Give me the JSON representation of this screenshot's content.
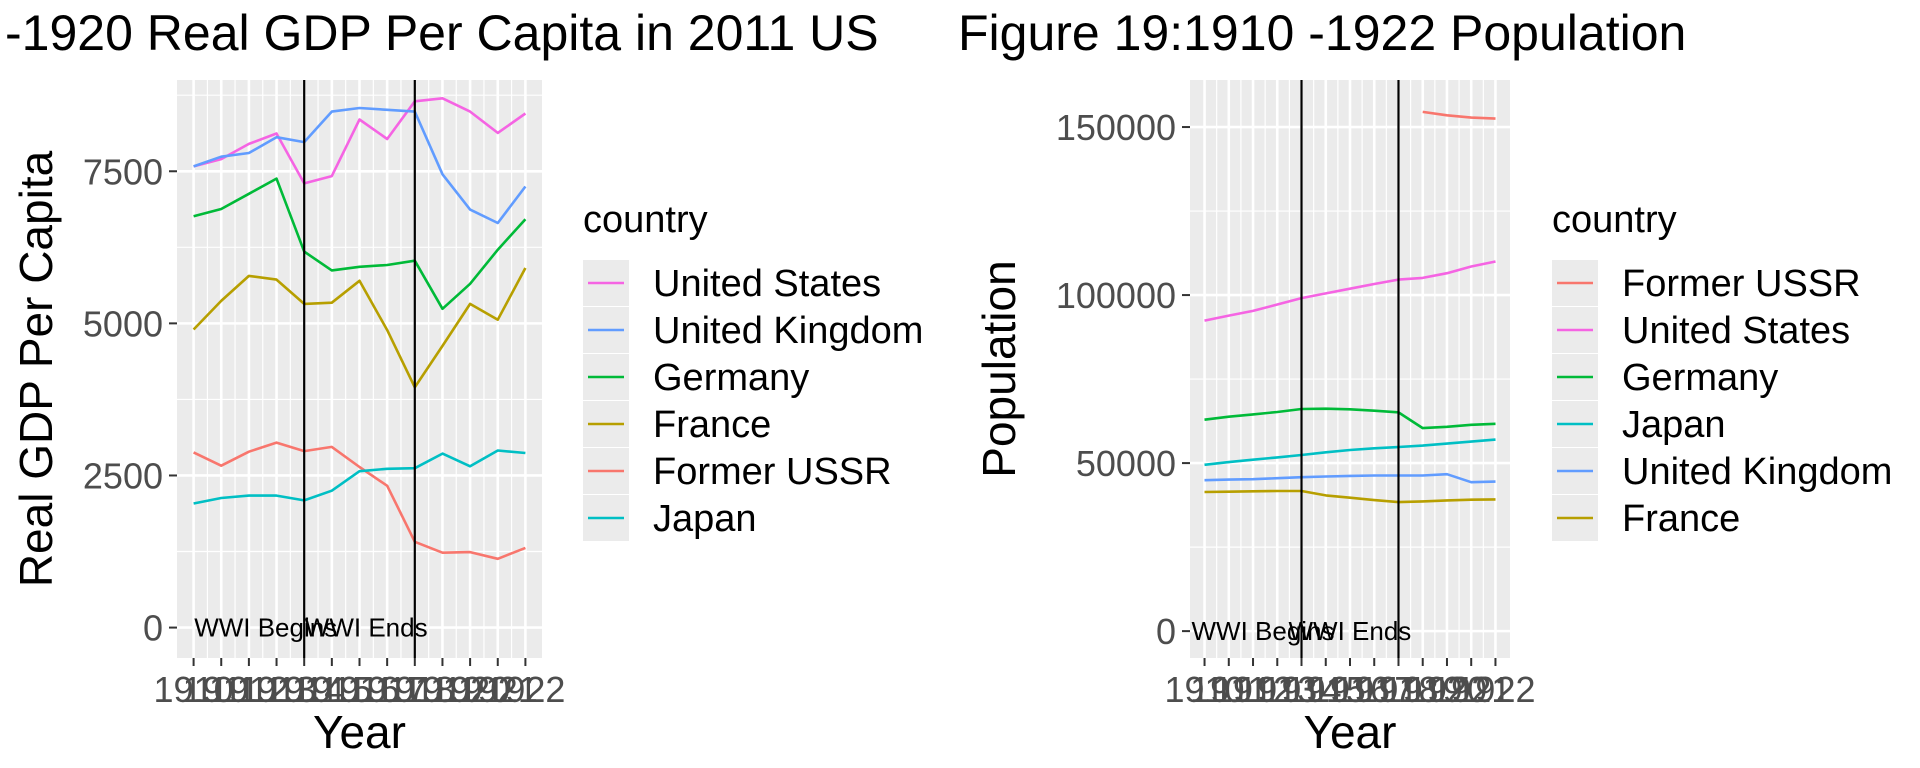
{
  "chart_data": [
    {
      "type": "line",
      "title": "-1920 Real GDP Per Capita in 2011 US",
      "xlabel": "Year",
      "ylabel": "Real GDP Per Capita",
      "x_tick_labels": [
        "1910",
        "1911",
        "1912",
        "1913",
        "1914",
        "1915",
        "1916",
        "1917",
        "1918",
        "1919",
        "1920",
        "1921",
        "1922"
      ],
      "y_ticks": [
        0,
        2500,
        5000,
        7500
      ],
      "ylim": [
        -500,
        9000
      ],
      "xlim": [
        1909.4,
        1922.6
      ],
      "grid": true,
      "legend_title": "country",
      "legend_position": "right",
      "vlines": [
        {
          "x": 1914,
          "label": "WWI Begins"
        },
        {
          "x": 1918,
          "label": "WWI Ends"
        }
      ],
      "x": [
        1910,
        1911,
        1912,
        1913,
        1914,
        1915,
        1916,
        1917,
        1918,
        1919,
        1920,
        1921,
        1922
      ],
      "series": [
        {
          "name": "United States",
          "color": "#f564e3",
          "values": [
            7580,
            7700,
            7950,
            8120,
            7300,
            7420,
            8350,
            8030,
            8650,
            8700,
            8480,
            8130,
            8450
          ]
        },
        {
          "name": "United Kingdom",
          "color": "#619cff",
          "values": [
            7580,
            7740,
            7800,
            8060,
            7980,
            8480,
            8540,
            8510,
            8480,
            7450,
            6870,
            6650,
            7250
          ]
        },
        {
          "name": "Germany",
          "color": "#00ba38",
          "values": [
            6760,
            6880,
            7130,
            7380,
            6180,
            5870,
            5930,
            5960,
            6030,
            5240,
            5650,
            6210,
            6710
          ]
        },
        {
          "name": "France",
          "color": "#b79f00",
          "values": [
            4900,
            5370,
            5780,
            5720,
            5320,
            5340,
            5700,
            4890,
            3950,
            4630,
            5320,
            5060,
            5910
          ]
        },
        {
          "name": "Former USSR",
          "color": "#f8766d",
          "values": [
            2880,
            2660,
            2890,
            3040,
            2900,
            2970,
            2640,
            2330,
            1410,
            1230,
            1240,
            1130,
            1310
          ]
        },
        {
          "name": "Japan",
          "color": "#00bfc4",
          "values": [
            2040,
            2130,
            2170,
            2170,
            2090,
            2250,
            2570,
            2610,
            2620,
            2860,
            2650,
            2910,
            2870
          ]
        }
      ]
    },
    {
      "type": "line",
      "title": "Figure 19:1910 -1922 Population",
      "xlabel": "Year",
      "ylabel": "Population",
      "x_tick_labels": [
        "1910",
        "1911",
        "1912",
        "1913",
        "1914",
        "1915",
        "1916",
        "1917",
        "1918",
        "1919",
        "1920",
        "1921",
        "1922"
      ],
      "y_ticks": [
        0,
        50000,
        100000,
        150000
      ],
      "ylim": [
        -8000,
        164000
      ],
      "xlim": [
        1909.4,
        1922.6
      ],
      "grid": true,
      "legend_title": "country",
      "legend_position": "right",
      "vlines": [
        {
          "x": 1914,
          "label": "WWI Begins"
        },
        {
          "x": 1918,
          "label": "WWI Ends"
        }
      ],
      "x": [
        1910,
        1911,
        1912,
        1913,
        1914,
        1915,
        1916,
        1917,
        1918,
        1919,
        1920,
        1921,
        1922
      ],
      "series": [
        {
          "name": "Former USSR",
          "color": "#f8766d",
          "values": [
            null,
            null,
            null,
            null,
            null,
            null,
            null,
            null,
            null,
            154500,
            153500,
            152800,
            152500
          ]
        },
        {
          "name": "United States",
          "color": "#f564e3",
          "values": [
            92400,
            93900,
            95300,
            97200,
            99100,
            100500,
            101900,
            103300,
            104600,
            105100,
            106500,
            108500,
            110000
          ]
        },
        {
          "name": "Germany",
          "color": "#00ba38",
          "values": [
            62900,
            63800,
            64500,
            65200,
            66100,
            66200,
            66000,
            65600,
            65100,
            60400,
            60800,
            61400,
            61700
          ]
        },
        {
          "name": "Japan",
          "color": "#00bfc4",
          "values": [
            49500,
            50300,
            51000,
            51700,
            52400,
            53200,
            53900,
            54400,
            54800,
            55200,
            55800,
            56400,
            57000
          ]
        },
        {
          "name": "United Kingdom",
          "color": "#619cff",
          "values": [
            44900,
            45100,
            45200,
            45500,
            45800,
            46000,
            46200,
            46300,
            46300,
            46300,
            46700,
            44300,
            44500
          ]
        },
        {
          "name": "France",
          "color": "#b79f00",
          "values": [
            41400,
            41500,
            41600,
            41700,
            41700,
            40400,
            39700,
            39000,
            38400,
            38600,
            38900,
            39100,
            39200
          ]
        }
      ]
    }
  ]
}
